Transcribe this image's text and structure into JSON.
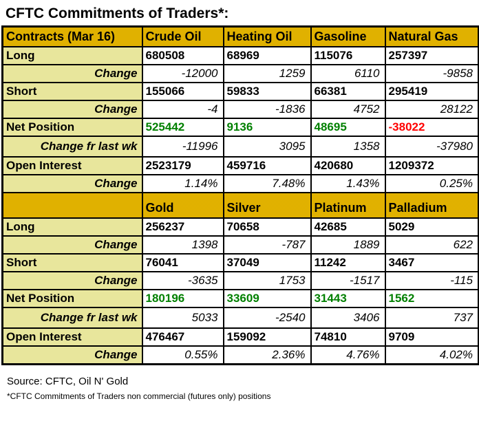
{
  "title": "CFTC Commitments of Traders*:",
  "colors": {
    "gold_header": "#E0B000",
    "pale_label": "#E9E79E",
    "green": "#008000",
    "red": "#FF0000",
    "border": "#000000"
  },
  "sections": [
    {
      "name": "energy",
      "header": [
        "Contracts (Mar 16)",
        "Crude Oil",
        "Heating Oil",
        "Gasoline",
        "Natural Gas"
      ],
      "rows": [
        {
          "label": "Long",
          "type": "value",
          "values": [
            "680508",
            "68969",
            "115076",
            "257397"
          ]
        },
        {
          "label": "Change",
          "type": "change",
          "values": [
            "-12000",
            "1259",
            "6110",
            "-9858"
          ]
        },
        {
          "label": "Short",
          "type": "value",
          "values": [
            "155066",
            "59833",
            "66381",
            "295419"
          ]
        },
        {
          "label": "Change",
          "type": "change",
          "values": [
            "-4",
            "-1836",
            "4752",
            "28122"
          ]
        },
        {
          "label": "Net Position",
          "type": "value",
          "values": [
            "525442",
            "9136",
            "48695",
            "-38022"
          ],
          "value_colors": [
            "green",
            "green",
            "green",
            "red"
          ]
        },
        {
          "label": "Change fr last wk",
          "type": "change",
          "values": [
            "-11996",
            "3095",
            "1358",
            "-37980"
          ]
        },
        {
          "label": "Open Interest",
          "type": "value",
          "values": [
            "2523179",
            "459716",
            "420680",
            "1209372"
          ]
        },
        {
          "label": "Change",
          "type": "change",
          "values": [
            "1.14%",
            "7.48%",
            "1.43%",
            "0.25%"
          ]
        }
      ]
    },
    {
      "name": "metals",
      "header": [
        "",
        "Gold",
        "Silver",
        "Platinum",
        "Palladium"
      ],
      "rows": [
        {
          "label": "Long",
          "type": "value",
          "values": [
            "256237",
            "70658",
            "42685",
            "5029"
          ]
        },
        {
          "label": "Change",
          "type": "change",
          "values": [
            "1398",
            "-787",
            "1889",
            "622"
          ]
        },
        {
          "label": "Short",
          "type": "value",
          "values": [
            "76041",
            "37049",
            "11242",
            "3467"
          ]
        },
        {
          "label": "Change",
          "type": "change",
          "values": [
            "-3635",
            "1753",
            "-1517",
            "-115"
          ]
        },
        {
          "label": "Net Position",
          "type": "value",
          "values": [
            "180196",
            "33609",
            "31443",
            "1562"
          ],
          "value_colors": [
            "green",
            "green",
            "green",
            "green"
          ]
        },
        {
          "label": "Change fr last wk",
          "type": "change",
          "values": [
            "5033",
            "-2540",
            "3406",
            "737"
          ]
        },
        {
          "label": "Open Interest",
          "type": "value",
          "values": [
            "476467",
            "159092",
            "74810",
            "9709"
          ]
        },
        {
          "label": "Change",
          "type": "change",
          "values": [
            "0.55%",
            "2.36%",
            "4.76%",
            "4.02%"
          ]
        }
      ]
    }
  ],
  "footer": {
    "source": "Source: CFTC, Oil N' Gold",
    "note": "*CFTC Commitments of Traders non commercial (futures only) positions"
  }
}
